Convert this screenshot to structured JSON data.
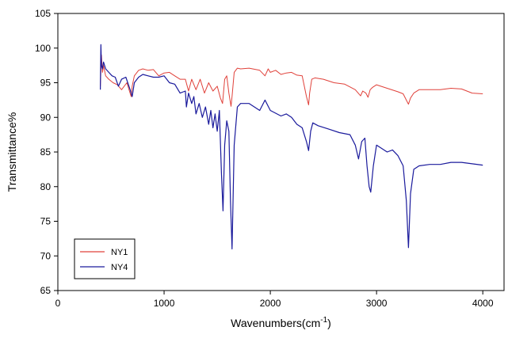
{
  "chart_data": {
    "type": "line",
    "title": "",
    "xlabel": "Wavenumbers(cm",
    "xlabel_sup": "-1",
    "xlabel_suffix": ")",
    "ylabel": "Transmittance%",
    "xlim": [
      0,
      4200
    ],
    "ylim": [
      65,
      105
    ],
    "xticks": [
      0,
      1000,
      2000,
      3000,
      4000
    ],
    "yticks": [
      65,
      70,
      75,
      80,
      85,
      90,
      95,
      100,
      105
    ],
    "grid": false,
    "legend_position": "bottom-left",
    "series": [
      {
        "name": "NY1",
        "color": "#e0413a",
        "x": [
          400,
          410,
          420,
          430,
          450,
          480,
          520,
          560,
          600,
          650,
          690,
          700,
          720,
          760,
          800,
          850,
          900,
          950,
          1000,
          1050,
          1100,
          1150,
          1200,
          1230,
          1260,
          1300,
          1340,
          1380,
          1420,
          1460,
          1500,
          1530,
          1550,
          1570,
          1590,
          1610,
          1630,
          1640,
          1660,
          1690,
          1720,
          1800,
          1900,
          1950,
          1980,
          2000,
          2050,
          2100,
          2150,
          2200,
          2250,
          2300,
          2340,
          2360,
          2370,
          2390,
          2420,
          2500,
          2600,
          2700,
          2800,
          2850,
          2870,
          2900,
          2920,
          2940,
          2960,
          3000,
          3100,
          3200,
          3250,
          3280,
          3300,
          3320,
          3350,
          3400,
          3500,
          3600,
          3700,
          3800,
          3900,
          4000
        ],
        "y": [
          94.5,
          99.0,
          96.5,
          97.5,
          96.0,
          95.5,
          95.0,
          94.7,
          94.0,
          95.0,
          93.0,
          94.5,
          96.0,
          96.8,
          97.0,
          96.8,
          96.9,
          96.0,
          96.4,
          96.5,
          96.0,
          95.5,
          95.5,
          93.8,
          95.5,
          94.0,
          95.5,
          93.5,
          95.0,
          93.8,
          94.5,
          92.8,
          92.0,
          95.5,
          96.0,
          93.5,
          91.6,
          93.0,
          96.5,
          97.1,
          97.0,
          97.1,
          96.8,
          96.0,
          97.0,
          96.5,
          96.8,
          96.2,
          96.4,
          96.5,
          96.1,
          96.0,
          93.0,
          91.8,
          93.5,
          95.5,
          95.7,
          95.5,
          95.0,
          94.8,
          94.0,
          93.1,
          93.8,
          93.5,
          92.9,
          94.0,
          94.3,
          94.7,
          94.2,
          93.7,
          93.4,
          92.5,
          91.9,
          92.8,
          93.5,
          94.0,
          94.0,
          94.0,
          94.2,
          94.1,
          93.5,
          93.4
        ]
      },
      {
        "name": "NY4",
        "color": "#1a1a9c",
        "x": [
          400,
          405,
          410,
          420,
          430,
          450,
          480,
          510,
          540,
          570,
          600,
          640,
          680,
          700,
          720,
          760,
          800,
          850,
          900,
          950,
          1000,
          1050,
          1100,
          1150,
          1200,
          1210,
          1230,
          1260,
          1280,
          1300,
          1330,
          1360,
          1390,
          1420,
          1440,
          1460,
          1480,
          1500,
          1520,
          1540,
          1555,
          1570,
          1590,
          1610,
          1625,
          1640,
          1660,
          1690,
          1720,
          1800,
          1900,
          1950,
          2000,
          2050,
          2100,
          2150,
          2200,
          2250,
          2300,
          2340,
          2360,
          2380,
          2400,
          2450,
          2550,
          2650,
          2750,
          2800,
          2830,
          2860,
          2890,
          2910,
          2930,
          2945,
          2970,
          3000,
          3050,
          3100,
          3150,
          3200,
          3250,
          3280,
          3300,
          3320,
          3350,
          3400,
          3500,
          3600,
          3700,
          3800,
          3900,
          4000
        ],
        "y": [
          94.0,
          100.5,
          97.5,
          97.0,
          98.0,
          97.0,
          96.5,
          96.0,
          95.8,
          94.5,
          95.5,
          95.8,
          94.0,
          93.0,
          95.0,
          95.8,
          96.2,
          96.0,
          95.8,
          95.8,
          96.0,
          95.0,
          94.8,
          93.5,
          93.8,
          91.5,
          93.5,
          92.0,
          93.0,
          90.5,
          92.0,
          90.0,
          91.5,
          89.0,
          91.0,
          88.5,
          90.5,
          88.0,
          91.0,
          82.0,
          76.5,
          86.0,
          89.5,
          88.0,
          78.0,
          71.0,
          86.0,
          91.5,
          92.0,
          92.0,
          91.0,
          92.5,
          91.0,
          90.6,
          90.2,
          90.5,
          90.0,
          89.0,
          88.5,
          86.5,
          85.2,
          88.0,
          89.2,
          88.8,
          88.3,
          87.8,
          87.5,
          86.0,
          84.0,
          86.5,
          87.0,
          83.0,
          80.0,
          79.2,
          83.0,
          86.0,
          85.5,
          85.0,
          85.3,
          84.5,
          83.0,
          78.0,
          71.2,
          79.0,
          82.5,
          83.0,
          83.2,
          83.2,
          83.5,
          83.5,
          83.3,
          83.1
        ]
      }
    ]
  }
}
